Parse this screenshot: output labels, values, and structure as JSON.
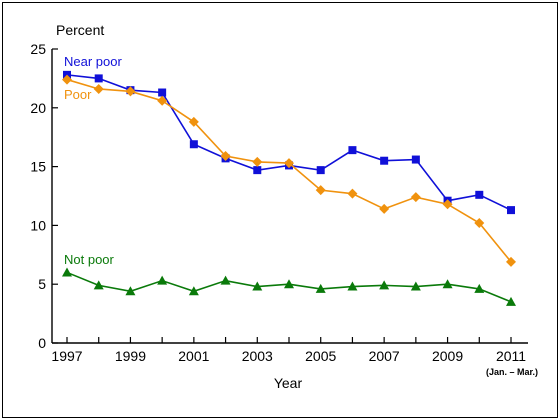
{
  "chart_data": {
    "type": "line",
    "ylabel": "Percent",
    "xlabel": "Year",
    "x_note": "(Jan. – Mar.)",
    "ylim": [
      0,
      25
    ],
    "yticks": [
      0,
      5,
      10,
      15,
      20,
      25
    ],
    "x": [
      1997,
      1998,
      1999,
      2000,
      2001,
      2002,
      2003,
      2004,
      2005,
      2006,
      2007,
      2008,
      2009,
      2010,
      2011
    ],
    "xticks": [
      1997,
      1999,
      2001,
      2003,
      2005,
      2007,
      2009,
      2011
    ],
    "series": [
      {
        "name": "Near poor",
        "color": "#1010d8",
        "marker": "square",
        "values": [
          22.8,
          22.5,
          21.5,
          21.3,
          16.9,
          15.7,
          14.7,
          15.1,
          14.7,
          16.4,
          15.5,
          15.6,
          12.1,
          12.6,
          11.3
        ]
      },
      {
        "name": "Poor",
        "color": "#f0920e",
        "marker": "diamond",
        "values": [
          22.4,
          21.6,
          21.4,
          20.6,
          18.8,
          15.9,
          15.4,
          15.3,
          13.0,
          12.7,
          11.4,
          12.4,
          11.8,
          10.2,
          6.9
        ]
      },
      {
        "name": "Not poor",
        "color": "#0a7a0a",
        "marker": "triangle",
        "values": [
          6.0,
          4.9,
          4.4,
          5.3,
          4.4,
          5.3,
          4.8,
          5.0,
          4.6,
          4.8,
          4.9,
          4.8,
          5.0,
          4.6,
          3.5
        ]
      }
    ]
  }
}
